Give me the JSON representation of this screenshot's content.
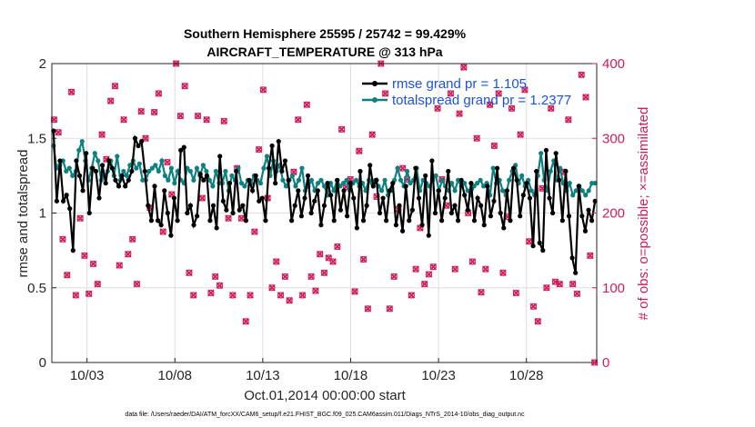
{
  "chart_data": {
    "type": "line",
    "title_lines": [
      "Southern Hemisphere 25595 / 25742 = 99.429%",
      "AIRCRAFT_TEMPERATURE @ 313 hPa"
    ],
    "ylabel_left": "rmse and totalspread",
    "ylabel_right": "# of obs: o=possible; ×=assimilated",
    "xlabel": "Oct.01,2014 00:00:00 start",
    "footnote": "data file: /Users/raeder/DAI/ATM_forcXX/CAM6_setup/f.e21.FHIST_BGC.f09_025.CAM6assim.011/Diags_NTrS_2014-10/obs_diag_output.nc",
    "x_tick_labels": [
      "10/03",
      "10/08",
      "10/13",
      "10/18",
      "10/23",
      "10/28"
    ],
    "x_tick_days": [
      3,
      8,
      13,
      18,
      23,
      28
    ],
    "xlim_days": [
      1.0,
      32.0
    ],
    "ylim_left": [
      0,
      2
    ],
    "yticks_left": [
      "0",
      "0.5",
      "1",
      "1.5",
      "2"
    ],
    "ylim_right": [
      0,
      400
    ],
    "yticks_right": [
      "0",
      "100",
      "200",
      "300",
      "400"
    ],
    "grid": true,
    "legend_position": "top-right",
    "colors": {
      "rmse": "#000000",
      "spread": "#0f8080",
      "obs": "#d01c5a",
      "legend_text": "#1a50e8"
    },
    "series": [
      {
        "name": "rmse grand pr = 1.105",
        "axis": "left",
        "values": [
          1.55,
          1.08,
          1.35,
          1.08,
          1.12,
          1.03,
          0.75,
          1.35,
          1.25,
          1.15,
          1.4,
          1.0,
          1.3,
          1.28,
          1.1,
          1.32,
          1.2,
          1.35,
          1.3,
          1.22,
          1.18,
          1.25,
          1.18,
          1.22,
          1.28,
          1.5,
          1.45,
          1.48,
          1.28,
          1.05,
          0.95,
          1.18,
          0.95,
          0.92,
          1.15,
          1.0,
          0.85,
          1.1,
          0.95,
          1.42,
          1.44,
          1.0,
          1.05,
          0.92,
          0.98,
          1.26,
          1.22,
          1.25,
          0.95,
          1.05,
          0.9,
          1.38,
          1.08,
          1.02,
          1.2,
          1.0,
          1.28,
          1.02,
          1.05,
          0.95,
          1.22,
          1.15,
          1.25,
          1.08,
          1.1,
          0.95,
          1.3,
          1.45,
          1.2,
          1.48,
          1.28,
          1.35,
          1.22,
          0.95,
          1.05,
          1.15,
          0.98,
          1.1,
          1.25,
          1.0,
          1.08,
          1.15,
          0.92,
          1.05,
          1.2,
          1.12,
          0.95,
          1.22,
          1.02,
          1.15,
          0.98,
          1.2,
          1.1,
          0.9,
          1.28,
          0.95,
          1.05,
          1.32,
          1.18,
          1.22,
          1.0,
          1.1,
          0.95,
          1.15,
          1.2,
          0.92,
          1.05,
          0.88,
          1.18,
          0.95,
          1.02,
          1.3,
          1.1,
          0.92,
          1.25,
          0.85,
          1.35,
          1.0,
          1.15,
          0.95,
          1.1,
          1.28,
          1.0,
          1.05,
          0.95,
          1.22,
          1.12,
          1.02,
          1.2,
          0.95,
          1.1,
          1.05,
          0.92,
          1.18,
          0.98,
          1.08,
          1.3,
          1.0,
          0.9,
          1.15,
          0.95,
          1.3,
          1.22,
          0.98,
          1.12,
          1.2,
          1.1,
          0.78,
          1.28,
          0.8,
          0.75,
          1.42,
          1.1,
          1.0,
          1.4,
          1.22,
          0.95,
          1.28,
          0.98,
          0.7,
          0.6,
          1.18,
          0.98,
          0.88,
          1.02,
          0.95,
          1.08
        ]
      },
      {
        "name": "totalspread grand pr = 1.2377",
        "axis": "left",
        "values": [
          1.45,
          1.3,
          1.32,
          1.35,
          1.28,
          1.3,
          1.25,
          1.28,
          1.42,
          1.48,
          1.35,
          1.22,
          1.3,
          1.4,
          1.35,
          1.22,
          1.25,
          1.28,
          1.35,
          1.25,
          1.38,
          1.22,
          1.28,
          1.25,
          1.32,
          1.35,
          1.3,
          1.33,
          1.22,
          1.22,
          1.28,
          1.3,
          1.32,
          1.28,
          1.35,
          1.25,
          1.22,
          1.3,
          1.2,
          1.28,
          1.22,
          1.2,
          1.3,
          1.28,
          1.22,
          1.3,
          1.25,
          1.32,
          1.28,
          1.22,
          1.18,
          1.28,
          1.2,
          1.2,
          1.28,
          1.15,
          1.25,
          1.22,
          1.3,
          1.2,
          1.18,
          1.22,
          1.2,
          1.25,
          1.22,
          1.2,
          1.3,
          1.38,
          1.25,
          1.35,
          1.28,
          1.32,
          1.22,
          1.18,
          1.22,
          1.25,
          1.18,
          1.22,
          1.3,
          1.15,
          1.18,
          1.22,
          1.15,
          1.2,
          1.22,
          1.18,
          1.12,
          1.2,
          1.15,
          1.22,
          1.18,
          1.2,
          1.22,
          1.15,
          1.2,
          1.22,
          1.18,
          1.2,
          1.15,
          1.22,
          1.2,
          1.22,
          1.18,
          1.15,
          1.22,
          1.12,
          1.15,
          1.22,
          1.3,
          1.22,
          1.18,
          1.28,
          1.2,
          1.22,
          1.3,
          1.15,
          1.22,
          1.2,
          1.18,
          1.22,
          1.25,
          1.15,
          1.22,
          1.18,
          1.15,
          1.2,
          1.15,
          1.22,
          1.18,
          1.2,
          1.15,
          1.12,
          1.18,
          1.2,
          1.22,
          1.18,
          1.2,
          1.12,
          1.3,
          1.2,
          1.22,
          1.15,
          1.12,
          1.22,
          1.28,
          1.32,
          1.2,
          1.25,
          1.18,
          1.22,
          1.15,
          1.12,
          1.25,
          1.4,
          1.22,
          1.15,
          1.28,
          1.35,
          1.22,
          1.3,
          1.2,
          1.15,
          1.2,
          1.12,
          1.15,
          1.18,
          1.15,
          1.12,
          1.15,
          1.2,
          1.2
        ]
      },
      {
        "name": "obs possible",
        "axis": "right",
        "marker": "o",
        "values": [
          325,
          308,
          165,
          117,
          362,
          90,
          193,
          143,
          92,
          132,
          105,
          305,
          272,
          350,
          370,
          130,
          325,
          145,
          165,
          105,
          336,
          300,
          207,
          335,
          360,
          175,
          268,
          225,
          400,
          330,
          370,
          120,
          90,
          330,
          220,
          325,
          93,
          115,
          103,
          323,
          193,
          90,
          260,
          193,
          55,
          90,
          175,
          285,
          365,
          220,
          100,
          135,
          90,
          115,
          83,
          255,
          325,
          90,
          345,
          115,
          96,
          145,
          120,
          140,
          135,
          155,
          312,
          235,
          245,
          95,
          283,
          138,
          72,
          305,
          222,
          400,
          360,
          72,
          115,
          205,
          260,
          245,
          90,
          125,
          180,
          105,
          118,
          128,
          340,
          245,
          210,
          360,
          125,
          333,
          395,
          200,
          135,
          300,
          94,
          125,
          345,
          290,
          360,
          120,
          195,
          340,
          93,
          305,
          365,
          162,
          75,
          55,
          233,
          100,
          340,
          108,
          105,
          255,
          325,
          105,
          92,
          385,
          355,
          143,
          0
        ]
      },
      {
        "name": "obs assimilated",
        "axis": "right",
        "marker": "x",
        "values": [
          325,
          308,
          165,
          117,
          362,
          90,
          193,
          143,
          92,
          132,
          105,
          305,
          272,
          350,
          370,
          130,
          325,
          145,
          165,
          105,
          336,
          300,
          207,
          335,
          360,
          175,
          268,
          225,
          400,
          330,
          370,
          120,
          90,
          330,
          220,
          325,
          93,
          115,
          103,
          323,
          193,
          90,
          260,
          193,
          55,
          90,
          175,
          285,
          365,
          220,
          100,
          135,
          90,
          115,
          83,
          255,
          325,
          90,
          345,
          115,
          96,
          145,
          120,
          140,
          135,
          155,
          312,
          235,
          245,
          95,
          283,
          138,
          72,
          305,
          222,
          400,
          360,
          72,
          115,
          205,
          260,
          245,
          90,
          125,
          180,
          105,
          118,
          128,
          340,
          245,
          210,
          360,
          125,
          333,
          395,
          200,
          135,
          300,
          94,
          125,
          345,
          290,
          360,
          120,
          195,
          340,
          93,
          305,
          365,
          162,
          75,
          55,
          233,
          100,
          340,
          108,
          105,
          255,
          325,
          105,
          92,
          385,
          355,
          143,
          0
        ]
      }
    ]
  }
}
